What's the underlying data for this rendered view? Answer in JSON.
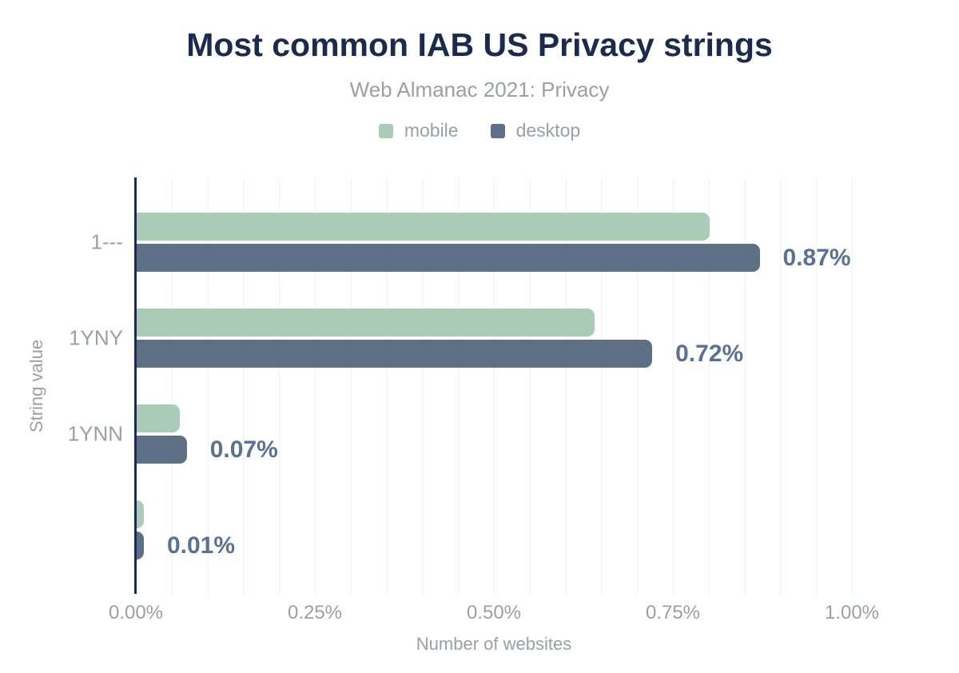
{
  "chart_data": {
    "type": "bar",
    "orientation": "horizontal",
    "title": "Most common IAB US Privacy strings",
    "subtitle": "Web Almanac 2021: Privacy",
    "xlabel": "Number of websites",
    "ylabel": "String value",
    "categories": [
      "1---",
      "1YNY",
      "1YNN",
      ""
    ],
    "series": [
      {
        "name": "mobile",
        "color": "#a9cbb8",
        "values": [
          0.8,
          0.64,
          0.06,
          0.01
        ]
      },
      {
        "name": "desktop",
        "color": "#5d7086",
        "values": [
          0.87,
          0.72,
          0.07,
          0.01
        ]
      }
    ],
    "bar_value_labels": [
      "0.87%",
      "0.72%",
      "0.07%",
      "0.01%"
    ],
    "x_ticks": [
      "0.00%",
      "0.25%",
      "0.50%",
      "0.75%",
      "1.00%"
    ],
    "xlim_pct": [
      0,
      1.0
    ],
    "grid_step_pct": 0.05,
    "grid": "minor vertical gridlines on",
    "legend_position": "top",
    "unit": "%"
  },
  "colors": {
    "title": "#1b2b4d",
    "muted_text": "#9b9ea4",
    "annotation": "#5a7190",
    "axis_line": "#1b2b4d",
    "gridline": "#f2f2f2",
    "background": "#ffffff"
  }
}
